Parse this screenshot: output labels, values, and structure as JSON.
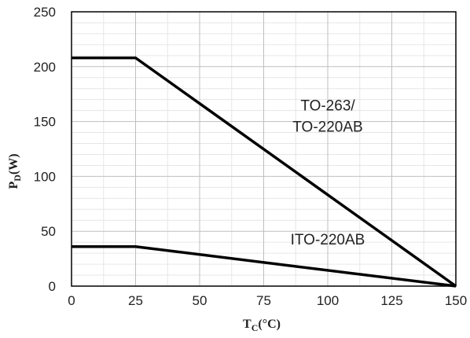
{
  "chart_data": {
    "type": "line",
    "xlabel": {
      "main": "T",
      "sub": "C",
      "unit": "(°C)"
    },
    "ylabel": {
      "main": "P",
      "sub": "D",
      "unit": "(W)"
    },
    "xlim": [
      0,
      150
    ],
    "ylim": [
      0,
      250
    ],
    "xticks": [
      0,
      25,
      50,
      75,
      100,
      125,
      150
    ],
    "yticks": [
      0,
      50,
      100,
      150,
      200,
      250
    ],
    "x_minor_step": 12.5,
    "y_minor_step": 10,
    "grid": true,
    "series": [
      {
        "name": "TO-263/ TO-220AB",
        "color": "#000000",
        "x": [
          0,
          25,
          150
        ],
        "y": [
          208,
          208,
          0
        ]
      },
      {
        "name": "ITO-220AB",
        "color": "#000000",
        "x": [
          0,
          25,
          150
        ],
        "y": [
          36,
          36,
          0
        ]
      }
    ],
    "annotations": [
      {
        "lines": [
          "TO-263/",
          "TO-220AB"
        ],
        "x": 100,
        "y": 160
      },
      {
        "lines": [
          "ITO-220AB"
        ],
        "x": 100,
        "y": 38
      }
    ]
  }
}
